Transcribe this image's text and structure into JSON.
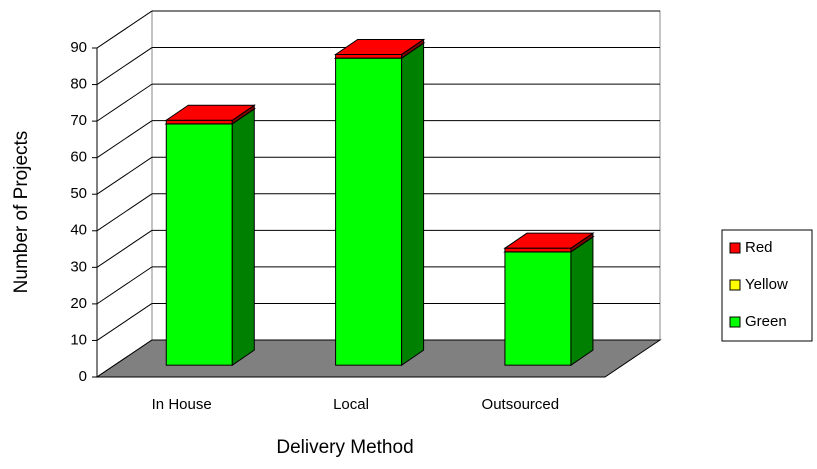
{
  "chart_data": {
    "type": "bar3d_stacked",
    "x_label": "Delivery Method",
    "y_label": "Number of Projects",
    "categories": [
      "In House",
      "Local",
      "Outsourced"
    ],
    "series": [
      {
        "name": "Green",
        "color": "#00ff00",
        "values": [
          66,
          84,
          31
        ]
      },
      {
        "name": "Yellow",
        "color": "#ffff00",
        "values": [
          0,
          0,
          0
        ]
      },
      {
        "name": "Red",
        "color": "#ff0000",
        "values": [
          1,
          1,
          1
        ]
      }
    ],
    "ylim": [
      0,
      90
    ],
    "yticks": [
      0,
      10,
      20,
      30,
      40,
      50,
      60,
      70,
      80,
      90
    ],
    "grid": true,
    "legend": "right"
  }
}
